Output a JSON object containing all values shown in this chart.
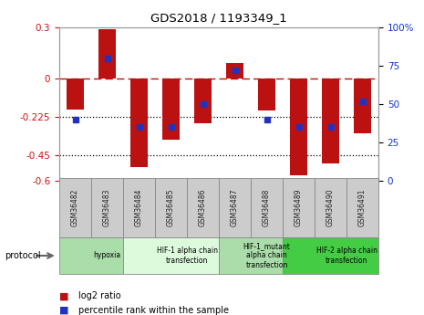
{
  "title": "GDS2018 / 1193349_1",
  "samples": [
    "GSM36482",
    "GSM36483",
    "GSM36484",
    "GSM36485",
    "GSM36486",
    "GSM36487",
    "GSM36488",
    "GSM36489",
    "GSM36490",
    "GSM36491"
  ],
  "log2_ratio": [
    -0.18,
    0.29,
    -0.52,
    -0.36,
    -0.26,
    0.09,
    -0.19,
    -0.57,
    -0.5,
    -0.32
  ],
  "percentile_rank": [
    40,
    80,
    35,
    35,
    50,
    72,
    40,
    35,
    35,
    52
  ],
  "ylim_left": [
    -0.6,
    0.3
  ],
  "ylim_right": [
    0,
    100
  ],
  "yticks_left": [
    0.3,
    0.0,
    -0.225,
    -0.45,
    -0.6
  ],
  "ytick_labels_left": [
    "0.3",
    "0",
    "-0.225",
    "-0.45",
    "-0.6"
  ],
  "yticks_right": [
    100,
    75,
    50,
    25,
    0
  ],
  "ytick_labels_right": [
    "100%",
    "75",
    "50",
    "25",
    "0"
  ],
  "hlines_dotted": [
    -0.225,
    -0.45
  ],
  "hline_dashed": 0.0,
  "bar_color": "#bb1111",
  "dot_color": "#2233bb",
  "protocols": [
    {
      "label": "hypoxia",
      "start": 0,
      "end": 2,
      "color": "#aaddaa"
    },
    {
      "label": "HIF-1 alpha chain\ntransfection",
      "start": 2,
      "end": 5,
      "color": "#ddfadd"
    },
    {
      "label": "HIF-1_mutant\nalpha chain\ntransfection",
      "start": 5,
      "end": 7,
      "color": "#aaddaa"
    },
    {
      "label": "HIF-2 alpha chain\ntransfection",
      "start": 7,
      "end": 10,
      "color": "#44cc44"
    }
  ],
  "legend_red": "log2 ratio",
  "legend_blue": "percentile rank within the sample",
  "protocol_label": "protocol",
  "tick_color_left": "#cc1111",
  "tick_color_right": "#1133cc",
  "spine_color": "#999999",
  "sample_box_color": "#cccccc",
  "sample_text_color": "#222222"
}
